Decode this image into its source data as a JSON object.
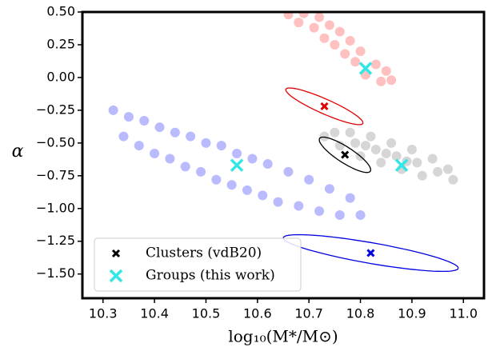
{
  "chart_data": {
    "type": "scatter",
    "xlabel": "log₁₀(M*/M⊙)",
    "ylabel": "α",
    "xlim": [
      10.26,
      11.04
    ],
    "ylim": [
      -1.685,
      0.5
    ],
    "xticks": [
      10.3,
      10.4,
      10.5,
      10.6,
      10.7,
      10.8,
      10.9,
      {
        "value": 11,
        "label": "11.0"
      }
    ],
    "yticks": [
      {
        "value": 0.5,
        "label": "0.50"
      },
      0.25,
      {
        "value": 0,
        "label": "0.00"
      },
      {
        "value": -0.25,
        "label": "−0.25"
      },
      {
        "value": -0.5,
        "label": "−0.50"
      },
      {
        "value": -0.75,
        "label": "−0.75"
      },
      {
        "value": -1,
        "label": "−1.00"
      },
      {
        "value": -1.25,
        "label": "−1.25"
      },
      {
        "value": -1.5,
        "label": "−1.50"
      }
    ],
    "legend": "lower left",
    "clouds": [
      {
        "color": "#1a1aff",
        "x": [
          10.32,
          10.34,
          10.35,
          10.37,
          10.38,
          10.4,
          10.41,
          10.43,
          10.44,
          10.46,
          10.47,
          10.49,
          10.5,
          10.52,
          10.53,
          10.55,
          10.56,
          10.58,
          10.59,
          10.61,
          10.62,
          10.64,
          10.66,
          10.68,
          10.7,
          10.72,
          10.74,
          10.76,
          10.78,
          10.8
        ],
        "y": [
          -0.25,
          -0.45,
          -0.3,
          -0.52,
          -0.33,
          -0.58,
          -0.38,
          -0.62,
          -0.42,
          -0.68,
          -0.45,
          -0.72,
          -0.5,
          -0.78,
          -0.52,
          -0.82,
          -0.58,
          -0.86,
          -0.62,
          -0.9,
          -0.66,
          -0.95,
          -0.72,
          -0.98,
          -0.78,
          -1.02,
          -0.85,
          -1.05,
          -0.92,
          -1.05
        ]
      },
      {
        "color": "#ff3030",
        "x": [
          10.66,
          10.68,
          10.69,
          10.71,
          10.72,
          10.73,
          10.74,
          10.75,
          10.76,
          10.77,
          10.78,
          10.79,
          10.8,
          10.81,
          10.83,
          10.84,
          10.85,
          10.86
        ],
        "y": [
          0.48,
          0.42,
          0.49,
          0.38,
          0.46,
          0.3,
          0.4,
          0.25,
          0.35,
          0.18,
          0.28,
          0.12,
          0.2,
          0.02,
          0.1,
          -0.03,
          0.05,
          -0.02
        ]
      },
      {
        "color": "#777777",
        "x": [
          10.73,
          10.75,
          10.76,
          10.78,
          10.79,
          10.8,
          10.82,
          10.83,
          10.84,
          10.86,
          10.87,
          10.88,
          10.9,
          10.91,
          10.92,
          10.94,
          10.95,
          10.97,
          10.98,
          10.85,
          10.81,
          10.89
        ],
        "y": [
          -0.45,
          -0.42,
          -0.52,
          -0.42,
          -0.5,
          -0.6,
          -0.45,
          -0.55,
          -0.65,
          -0.5,
          -0.6,
          -0.7,
          -0.55,
          -0.65,
          -0.75,
          -0.62,
          -0.72,
          -0.7,
          -0.78,
          -0.58,
          -0.52,
          -0.64
        ]
      }
    ],
    "series": [
      {
        "name": "Clusters (vdB20)",
        "color": "#000000",
        "colors": [
          "#e00000",
          "#000000",
          "#0000e0"
        ],
        "x": [
          10.73,
          10.77,
          10.82
        ],
        "y": [
          -0.22,
          -0.59,
          -1.34
        ],
        "sx": [
          0.075,
          0.05,
          0.17
        ],
        "sy": [
          0.14,
          0.135,
          0.14
        ],
        "rho": [
          -0.9,
          -0.85,
          -0.82
        ]
      },
      {
        "name": "Groups (this work)",
        "color": "#33e6e6",
        "x": [
          10.56,
          10.81,
          10.88
        ],
        "y": [
          -0.67,
          0.07,
          -0.67
        ]
      }
    ]
  }
}
